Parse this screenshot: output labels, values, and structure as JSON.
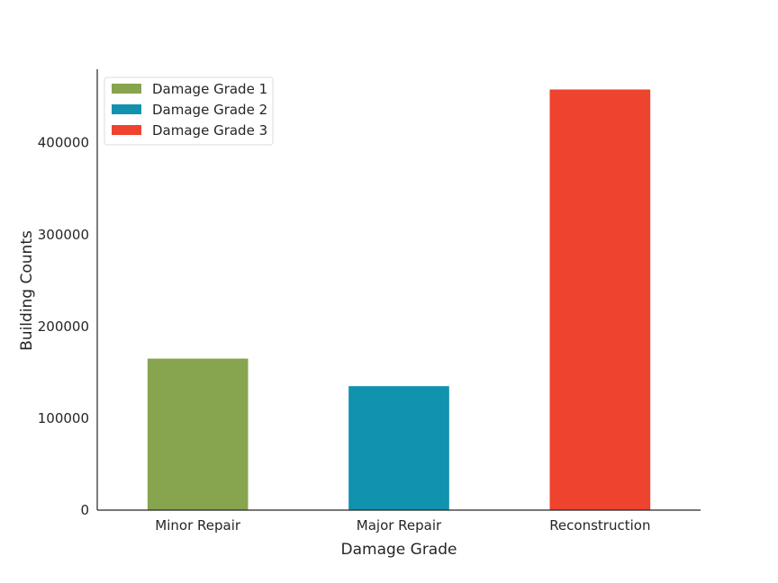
{
  "chart_data": {
    "type": "bar",
    "categories": [
      "Minor Repair",
      "Major Repair",
      "Reconstruction"
    ],
    "series": [
      {
        "name": "Damage Grade 1",
        "category": "Minor Repair",
        "value": 165000,
        "color": "#87A44E"
      },
      {
        "name": "Damage Grade 2",
        "category": "Major Repair",
        "value": 135000,
        "color": "#1192AE"
      },
      {
        "name": "Damage Grade 3",
        "category": "Reconstruction",
        "value": 458000,
        "color": "#EE432F"
      }
    ],
    "xlabel": "Damage Grade",
    "ylabel": "Building Counts",
    "ylim": [
      0,
      480000
    ],
    "yticks": [
      0,
      100000,
      200000,
      300000,
      400000
    ],
    "ytick_labels": [
      "0",
      "100000",
      "200000",
      "300000",
      "400000"
    ],
    "grid": false,
    "legend_position": "top-left"
  }
}
